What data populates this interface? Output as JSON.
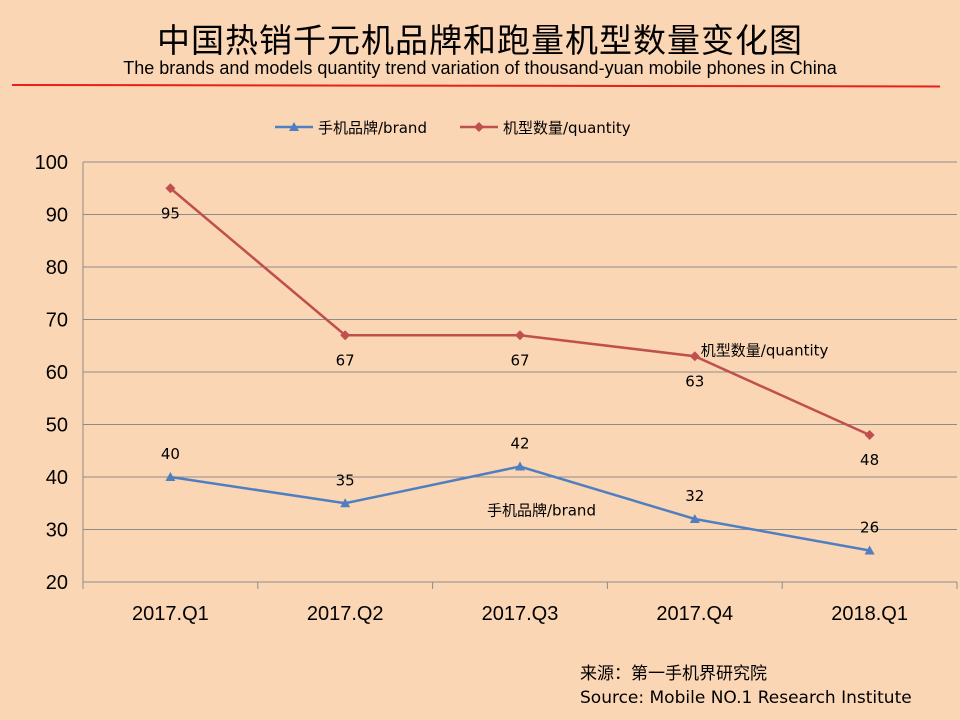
{
  "header": {
    "title": "中国热销千元机品牌和跑量机型数量变化图",
    "subtitle": "The brands and models quantity trend variation of thousand-yuan mobile phones in China"
  },
  "footer": {
    "source_cn": "来源：第一手机界研究院",
    "source_en": "Source: Mobile NO.1 Research Institute"
  },
  "colors": {
    "brand": "#4f7fc0",
    "quantity": "#c0504d",
    "grid": "#8c8c8c",
    "accent_line": "#e8201c"
  },
  "chart_data": {
    "type": "line",
    "categories": [
      "2017.Q1",
      "2017.Q2",
      "2017.Q3",
      "2017.Q4",
      "2018.Q1"
    ],
    "series": [
      {
        "name": "手机品牌/brand",
        "values": [
          40,
          35,
          42,
          32,
          26
        ],
        "marker": "triangle"
      },
      {
        "name": "机型数量/quantity",
        "values": [
          95,
          67,
          67,
          63,
          48
        ],
        "marker": "diamond"
      }
    ],
    "ylim": [
      20,
      100
    ],
    "yticks": [
      20,
      30,
      40,
      50,
      60,
      70,
      80,
      90,
      100
    ],
    "grid": true,
    "legend": "top"
  }
}
